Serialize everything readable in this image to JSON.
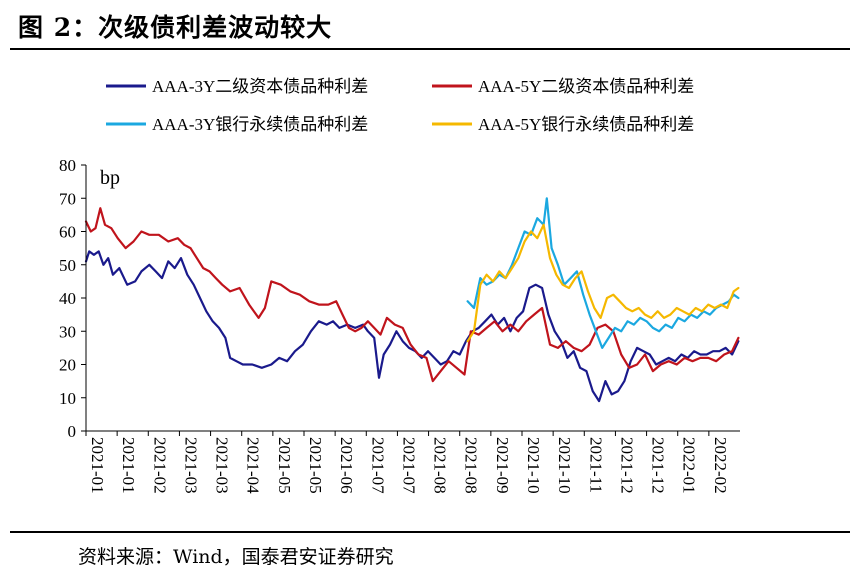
{
  "header": {
    "title": "图 2：次级债利差波动较大"
  },
  "footer": {
    "source": "资料来源：Wind，国泰君安证券研究"
  },
  "chart_data": {
    "type": "line",
    "title": "次级债利差波动较大",
    "unit_label": "bp",
    "ylim": [
      0,
      80
    ],
    "yticks": [
      0,
      10,
      20,
      30,
      40,
      50,
      60,
      70,
      80
    ],
    "xlim": [
      "2021-01-01",
      "2022-02-18"
    ],
    "xticks": [
      "2021-01",
      "2021-01",
      "2021-02",
      "2021-03",
      "2021-03",
      "2021-04",
      "2021-05",
      "2021-05",
      "2021-06",
      "2021-07",
      "2021-07",
      "2021-08",
      "2021-08",
      "2021-09",
      "2021-10",
      "2021-10",
      "2021-11",
      "2021-12",
      "2021-12",
      "2022-01",
      "2022-02"
    ],
    "legend_position": "top",
    "grid": false,
    "series": [
      {
        "name": "AAA-3Y二级资本债品种利差",
        "color": "#1a1a8c",
        "points": [
          [
            "2021-01-01",
            51
          ],
          [
            "2021-01-03",
            54
          ],
          [
            "2021-01-06",
            53
          ],
          [
            "2021-01-09",
            54
          ],
          [
            "2021-01-12",
            50
          ],
          [
            "2021-01-15",
            52
          ],
          [
            "2021-01-18",
            47
          ],
          [
            "2021-01-22",
            49
          ],
          [
            "2021-01-27",
            44
          ],
          [
            "2021-02-01",
            45
          ],
          [
            "2021-02-05",
            48
          ],
          [
            "2021-02-10",
            50
          ],
          [
            "2021-02-14",
            48
          ],
          [
            "2021-02-18",
            46
          ],
          [
            "2021-02-22",
            51
          ],
          [
            "2021-02-26",
            49
          ],
          [
            "2021-03-02",
            52
          ],
          [
            "2021-03-06",
            47
          ],
          [
            "2021-03-10",
            44
          ],
          [
            "2021-03-14",
            40
          ],
          [
            "2021-03-18",
            36
          ],
          [
            "2021-03-22",
            33
          ],
          [
            "2021-03-26",
            31
          ],
          [
            "2021-03-30",
            28
          ],
          [
            "2021-04-02",
            22
          ],
          [
            "2021-04-06",
            21
          ],
          [
            "2021-04-10",
            20
          ],
          [
            "2021-04-16",
            20
          ],
          [
            "2021-04-22",
            19
          ],
          [
            "2021-04-28",
            20
          ],
          [
            "2021-05-03",
            22
          ],
          [
            "2021-05-08",
            21
          ],
          [
            "2021-05-13",
            24
          ],
          [
            "2021-05-18",
            26
          ],
          [
            "2021-05-23",
            30
          ],
          [
            "2021-05-28",
            33
          ],
          [
            "2021-06-02",
            32
          ],
          [
            "2021-06-06",
            33
          ],
          [
            "2021-06-10",
            31
          ],
          [
            "2021-06-15",
            32
          ],
          [
            "2021-06-20",
            31
          ],
          [
            "2021-06-25",
            32
          ],
          [
            "2021-06-28",
            30
          ],
          [
            "2021-07-02",
            28
          ],
          [
            "2021-07-05",
            16
          ],
          [
            "2021-07-08",
            23
          ],
          [
            "2021-07-12",
            26
          ],
          [
            "2021-07-16",
            30
          ],
          [
            "2021-07-20",
            27
          ],
          [
            "2021-07-24",
            25
          ],
          [
            "2021-07-28",
            24
          ],
          [
            "2021-08-01",
            22
          ],
          [
            "2021-08-05",
            24
          ],
          [
            "2021-08-09",
            22
          ],
          [
            "2021-08-13",
            20
          ],
          [
            "2021-08-17",
            21
          ],
          [
            "2021-08-21",
            24
          ],
          [
            "2021-08-25",
            23
          ],
          [
            "2021-08-29",
            27
          ],
          [
            "2021-09-02",
            30
          ],
          [
            "2021-09-06",
            31
          ],
          [
            "2021-09-10",
            33
          ],
          [
            "2021-09-14",
            35
          ],
          [
            "2021-09-18",
            32
          ],
          [
            "2021-09-22",
            34
          ],
          [
            "2021-09-26",
            30
          ],
          [
            "2021-09-30",
            34
          ],
          [
            "2021-10-04",
            36
          ],
          [
            "2021-10-08",
            43
          ],
          [
            "2021-10-12",
            44
          ],
          [
            "2021-10-16",
            43
          ],
          [
            "2021-10-20",
            35
          ],
          [
            "2021-10-24",
            30
          ],
          [
            "2021-10-28",
            27
          ],
          [
            "2021-11-01",
            22
          ],
          [
            "2021-11-05",
            24
          ],
          [
            "2021-11-09",
            19
          ],
          [
            "2021-11-13",
            18
          ],
          [
            "2021-11-17",
            12
          ],
          [
            "2021-11-21",
            9
          ],
          [
            "2021-11-25",
            15
          ],
          [
            "2021-11-29",
            11
          ],
          [
            "2021-12-03",
            12
          ],
          [
            "2021-12-07",
            15
          ],
          [
            "2021-12-11",
            21
          ],
          [
            "2021-12-15",
            25
          ],
          [
            "2021-12-19",
            24
          ],
          [
            "2021-12-23",
            23
          ],
          [
            "2021-12-27",
            20
          ],
          [
            "2021-12-31",
            21
          ],
          [
            "2022-01-04",
            22
          ],
          [
            "2022-01-08",
            21
          ],
          [
            "2022-01-12",
            23
          ],
          [
            "2022-01-16",
            22
          ],
          [
            "2022-01-20",
            24
          ],
          [
            "2022-01-24",
            23
          ],
          [
            "2022-01-28",
            23
          ],
          [
            "2022-02-01",
            24
          ],
          [
            "2022-02-05",
            24
          ],
          [
            "2022-02-09",
            25
          ],
          [
            "2022-02-13",
            23
          ],
          [
            "2022-02-17",
            27
          ]
        ]
      },
      {
        "name": "AAA-5Y二级资本债品种利差",
        "color": "#c0141c",
        "points": [
          [
            "2021-01-01",
            63
          ],
          [
            "2021-01-04",
            60
          ],
          [
            "2021-01-07",
            61
          ],
          [
            "2021-01-10",
            67
          ],
          [
            "2021-01-13",
            62
          ],
          [
            "2021-01-17",
            61
          ],
          [
            "2021-01-21",
            58
          ],
          [
            "2021-01-26",
            55
          ],
          [
            "2021-01-31",
            57
          ],
          [
            "2021-02-05",
            60
          ],
          [
            "2021-02-10",
            59
          ],
          [
            "2021-02-16",
            59
          ],
          [
            "2021-02-22",
            57
          ],
          [
            "2021-02-28",
            58
          ],
          [
            "2021-03-04",
            56
          ],
          [
            "2021-03-08",
            55
          ],
          [
            "2021-03-12",
            52
          ],
          [
            "2021-03-16",
            49
          ],
          [
            "2021-03-20",
            48
          ],
          [
            "2021-03-24",
            46
          ],
          [
            "2021-03-28",
            44
          ],
          [
            "2021-04-02",
            42
          ],
          [
            "2021-04-08",
            43
          ],
          [
            "2021-04-14",
            38
          ],
          [
            "2021-04-20",
            34
          ],
          [
            "2021-04-24",
            37
          ],
          [
            "2021-04-28",
            45
          ],
          [
            "2021-05-04",
            44
          ],
          [
            "2021-05-10",
            42
          ],
          [
            "2021-05-16",
            41
          ],
          [
            "2021-05-22",
            39
          ],
          [
            "2021-05-28",
            38
          ],
          [
            "2021-06-03",
            38
          ],
          [
            "2021-06-08",
            39
          ],
          [
            "2021-06-12",
            35
          ],
          [
            "2021-06-16",
            31
          ],
          [
            "2021-06-20",
            30
          ],
          [
            "2021-06-24",
            31
          ],
          [
            "2021-06-28",
            33
          ],
          [
            "2021-07-02",
            31
          ],
          [
            "2021-07-06",
            29
          ],
          [
            "2021-07-10",
            34
          ],
          [
            "2021-07-15",
            32
          ],
          [
            "2021-07-20",
            31
          ],
          [
            "2021-07-25",
            26
          ],
          [
            "2021-07-30",
            23
          ],
          [
            "2021-08-04",
            22
          ],
          [
            "2021-08-08",
            15
          ],
          [
            "2021-08-13",
            18
          ],
          [
            "2021-08-18",
            21
          ],
          [
            "2021-08-23",
            19
          ],
          [
            "2021-08-28",
            17
          ],
          [
            "2021-09-01",
            30
          ],
          [
            "2021-09-06",
            29
          ],
          [
            "2021-09-11",
            31
          ],
          [
            "2021-09-16",
            33
          ],
          [
            "2021-09-21",
            30
          ],
          [
            "2021-09-26",
            32
          ],
          [
            "2021-10-01",
            30
          ],
          [
            "2021-10-06",
            33
          ],
          [
            "2021-10-11",
            35
          ],
          [
            "2021-10-16",
            37
          ],
          [
            "2021-10-21",
            26
          ],
          [
            "2021-10-26",
            25
          ],
          [
            "2021-10-31",
            27
          ],
          [
            "2021-11-05",
            25
          ],
          [
            "2021-11-10",
            24
          ],
          [
            "2021-11-15",
            26
          ],
          [
            "2021-11-20",
            31
          ],
          [
            "2021-11-25",
            32
          ],
          [
            "2021-11-30",
            30
          ],
          [
            "2021-12-05",
            23
          ],
          [
            "2021-12-10",
            19
          ],
          [
            "2021-12-15",
            20
          ],
          [
            "2021-12-20",
            23
          ],
          [
            "2021-12-25",
            18
          ],
          [
            "2021-12-30",
            20
          ],
          [
            "2022-01-04",
            21
          ],
          [
            "2022-01-09",
            20
          ],
          [
            "2022-01-14",
            22
          ],
          [
            "2022-01-19",
            21
          ],
          [
            "2022-01-24",
            22
          ],
          [
            "2022-01-29",
            22
          ],
          [
            "2022-02-03",
            21
          ],
          [
            "2022-02-08",
            23
          ],
          [
            "2022-02-13",
            24
          ],
          [
            "2022-02-17",
            28
          ]
        ]
      },
      {
        "name": "AAA-3Y银行永续债品种利差",
        "color": "#1ba8e0",
        "points": [
          [
            "2021-08-30",
            39
          ],
          [
            "2021-09-03",
            37
          ],
          [
            "2021-09-07",
            46
          ],
          [
            "2021-09-11",
            44
          ],
          [
            "2021-09-15",
            45
          ],
          [
            "2021-09-19",
            47
          ],
          [
            "2021-09-23",
            46
          ],
          [
            "2021-09-27",
            50
          ],
          [
            "2021-10-01",
            55
          ],
          [
            "2021-10-05",
            60
          ],
          [
            "2021-10-09",
            59
          ],
          [
            "2021-10-13",
            64
          ],
          [
            "2021-10-17",
            62
          ],
          [
            "2021-10-19",
            70
          ],
          [
            "2021-10-22",
            55
          ],
          [
            "2021-10-26",
            50
          ],
          [
            "2021-10-30",
            44
          ],
          [
            "2021-11-03",
            46
          ],
          [
            "2021-11-07",
            48
          ],
          [
            "2021-11-11",
            41
          ],
          [
            "2021-11-15",
            35
          ],
          [
            "2021-11-19",
            30
          ],
          [
            "2021-11-23",
            25
          ],
          [
            "2021-11-27",
            28
          ],
          [
            "2021-12-01",
            31
          ],
          [
            "2021-12-05",
            30
          ],
          [
            "2021-12-09",
            33
          ],
          [
            "2021-12-13",
            32
          ],
          [
            "2021-12-17",
            34
          ],
          [
            "2021-12-21",
            33
          ],
          [
            "2021-12-25",
            31
          ],
          [
            "2021-12-29",
            30
          ],
          [
            "2022-01-02",
            32
          ],
          [
            "2022-01-06",
            31
          ],
          [
            "2022-01-10",
            34
          ],
          [
            "2022-01-14",
            33
          ],
          [
            "2022-01-18",
            35
          ],
          [
            "2022-01-22",
            34
          ],
          [
            "2022-01-26",
            36
          ],
          [
            "2022-01-30",
            35
          ],
          [
            "2022-02-03",
            37
          ],
          [
            "2022-02-07",
            38
          ],
          [
            "2022-02-11",
            39
          ],
          [
            "2022-02-14",
            41
          ],
          [
            "2022-02-17",
            40
          ]
        ]
      },
      {
        "name": "AAA-5Y银行永续债品种利差",
        "color": "#f5b800",
        "points": [
          [
            "2021-08-30",
            27
          ],
          [
            "2021-09-03",
            30
          ],
          [
            "2021-09-07",
            44
          ],
          [
            "2021-09-11",
            47
          ],
          [
            "2021-09-15",
            45
          ],
          [
            "2021-09-19",
            48
          ],
          [
            "2021-09-23",
            46
          ],
          [
            "2021-09-27",
            49
          ],
          [
            "2021-10-01",
            52
          ],
          [
            "2021-10-05",
            57
          ],
          [
            "2021-10-09",
            60
          ],
          [
            "2021-10-13",
            58
          ],
          [
            "2021-10-17",
            62
          ],
          [
            "2021-10-21",
            52
          ],
          [
            "2021-10-25",
            47
          ],
          [
            "2021-10-29",
            44
          ],
          [
            "2021-11-02",
            43
          ],
          [
            "2021-11-06",
            46
          ],
          [
            "2021-11-10",
            48
          ],
          [
            "2021-11-14",
            42
          ],
          [
            "2021-11-18",
            37
          ],
          [
            "2021-11-22",
            34
          ],
          [
            "2021-11-26",
            40
          ],
          [
            "2021-11-30",
            41
          ],
          [
            "2021-12-04",
            39
          ],
          [
            "2021-12-08",
            37
          ],
          [
            "2021-12-12",
            36
          ],
          [
            "2021-12-16",
            37
          ],
          [
            "2021-12-20",
            35
          ],
          [
            "2021-12-24",
            34
          ],
          [
            "2021-12-28",
            36
          ],
          [
            "2022-01-01",
            34
          ],
          [
            "2022-01-05",
            35
          ],
          [
            "2022-01-09",
            37
          ],
          [
            "2022-01-13",
            36
          ],
          [
            "2022-01-17",
            35
          ],
          [
            "2022-01-21",
            37
          ],
          [
            "2022-01-25",
            36
          ],
          [
            "2022-01-29",
            38
          ],
          [
            "2022-02-02",
            37
          ],
          [
            "2022-02-06",
            38
          ],
          [
            "2022-02-10",
            37
          ],
          [
            "2022-02-14",
            42
          ],
          [
            "2022-02-17",
            43
          ]
        ]
      }
    ]
  }
}
